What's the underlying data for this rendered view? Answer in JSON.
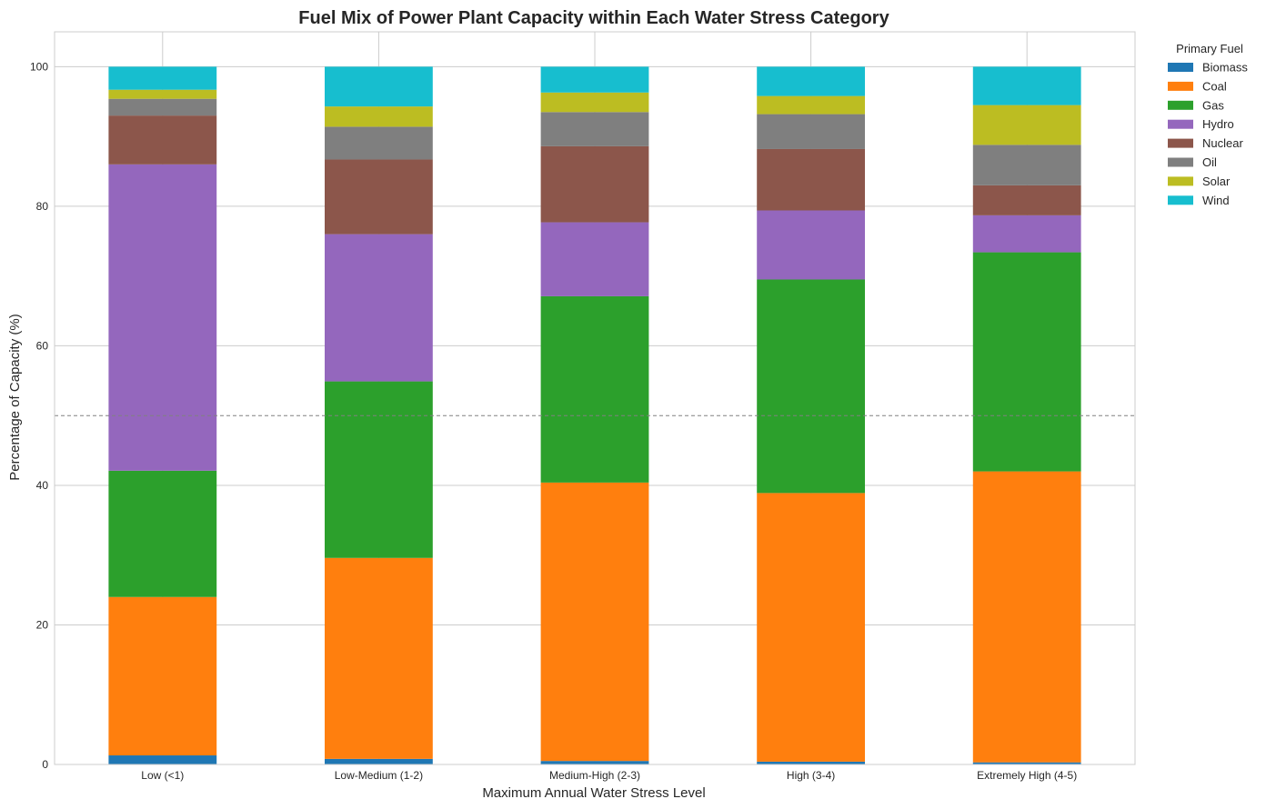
{
  "chart_data": {
    "type": "bar",
    "stacked": true,
    "title": "Fuel Mix of Power Plant Capacity within Each Water Stress Category",
    "xlabel": "Maximum Annual Water Stress Level",
    "ylabel": "Percentage of Capacity (%)",
    "ylim": [
      0,
      105
    ],
    "yticks": [
      "0",
      "20",
      "40",
      "60",
      "80",
      "100"
    ],
    "grid": true,
    "reference_line": {
      "y": 50,
      "style": "dashed"
    },
    "legend_title": "Primary Fuel",
    "legend_position": "outside-top-right",
    "categories": [
      "Low (<1)",
      "Low-Medium (1-2)",
      "Medium-High (2-3)",
      "High (3-4)",
      "Extremely High (4-5)"
    ],
    "series": [
      {
        "name": "Biomass",
        "color": "#1f77b4",
        "values": [
          1.3,
          0.8,
          0.5,
          0.4,
          0.3
        ]
      },
      {
        "name": "Coal",
        "color": "#ff7f0e",
        "values": [
          22.7,
          28.8,
          39.9,
          38.5,
          41.7
        ]
      },
      {
        "name": "Gas",
        "color": "#2ca02c",
        "values": [
          18.1,
          25.3,
          26.7,
          30.6,
          31.4
        ]
      },
      {
        "name": "Hydro",
        "color": "#9467bd",
        "values": [
          43.9,
          21.1,
          10.6,
          9.9,
          5.3
        ]
      },
      {
        "name": "Nuclear",
        "color": "#8c564b",
        "values": [
          7.0,
          10.7,
          10.9,
          8.8,
          4.3
        ]
      },
      {
        "name": "Oil",
        "color": "#7f7f7f",
        "values": [
          2.4,
          4.7,
          4.9,
          5.0,
          5.8
        ]
      },
      {
        "name": "Solar",
        "color": "#bcbd22",
        "values": [
          1.3,
          2.9,
          2.8,
          2.6,
          5.7
        ]
      },
      {
        "name": "Wind",
        "color": "#17becf",
        "values": [
          3.3,
          5.7,
          3.7,
          4.2,
          5.5
        ]
      }
    ]
  }
}
